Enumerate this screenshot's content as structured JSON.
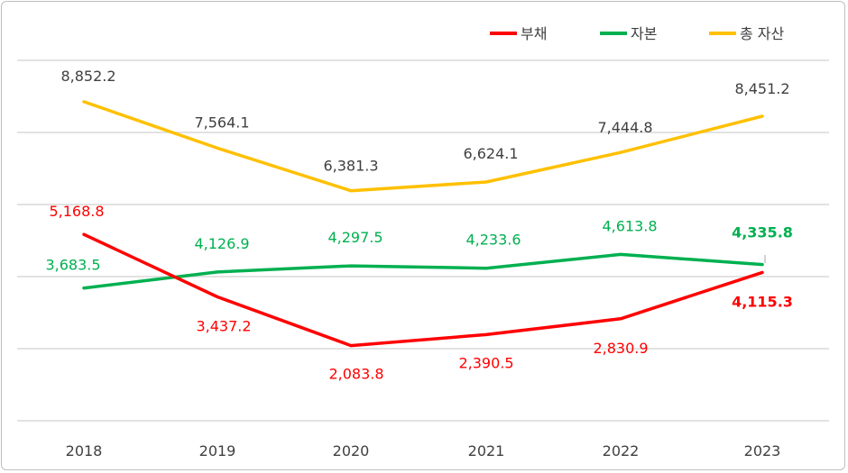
{
  "colors": {
    "liability": "#ff0000",
    "equity": "#00b050",
    "assets": "#ffc000",
    "grid": "#d9d9d9",
    "text": "#404040"
  },
  "chart_data": {
    "type": "line",
    "title": "",
    "xlabel": "",
    "ylabel": "",
    "categories": [
      "2018",
      "2019",
      "2020",
      "2021",
      "2022",
      "2023"
    ],
    "ylim": [
      0,
      10000
    ],
    "grid": true,
    "legend_position": "top-right",
    "series": [
      {
        "name": "부채",
        "color": "#ff0000",
        "values": [
          5168.8,
          3437.2,
          2083.8,
          2390.5,
          2830.9,
          4115.3
        ],
        "labels": [
          "5,168.8",
          "3,437.2",
          "2,083.8",
          "2,390.5",
          "2,830.9",
          "4,115.3"
        ]
      },
      {
        "name": "자본",
        "color": "#00b050",
        "values": [
          3683.5,
          4126.9,
          4297.5,
          4233.6,
          4613.8,
          4335.8
        ],
        "labels": [
          "3,683.5",
          "4,126.9",
          "4,297.5",
          "4,233.6",
          "4,613.8",
          "4,335.8"
        ]
      },
      {
        "name": "총 자산",
        "color": "#ffc000",
        "values": [
          8852.2,
          7564.1,
          6381.3,
          6624.1,
          7444.8,
          8451.2
        ],
        "labels": [
          "8,852.2",
          "7,564.1",
          "6,381.3",
          "6,624.1",
          "7,444.8",
          "8,451.2"
        ]
      }
    ]
  }
}
